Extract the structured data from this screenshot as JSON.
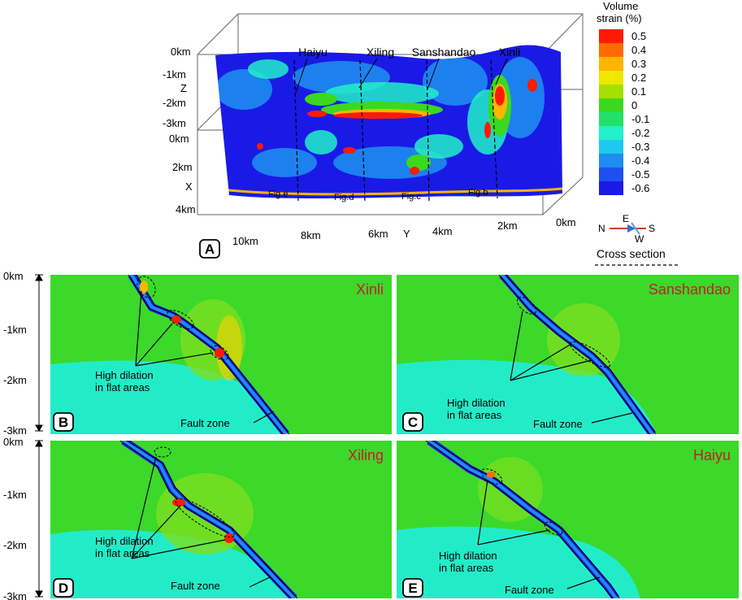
{
  "panel_a": {
    "letter": "A",
    "z_axis": {
      "label": "Z",
      "ticks": [
        "0km",
        "-1km",
        "-2km",
        "-3km"
      ]
    },
    "x_axis": {
      "label": "X",
      "ticks": [
        "0km",
        "2km",
        "4km"
      ]
    },
    "y_axis": {
      "label": "Y",
      "ticks": [
        "10km",
        "8km",
        "6km",
        "4km",
        "2km",
        "0km"
      ]
    },
    "locations": [
      "Haiyu",
      "Xiling",
      "Sanshandao",
      "Xinli"
    ],
    "fig_labels": [
      "Fig.e",
      "Fig.d",
      "Fig.c",
      "Fig.b"
    ],
    "compass": {
      "n": "N",
      "e": "E",
      "s": "S",
      "w": "W"
    }
  },
  "colorbar": {
    "title_line1": "Volume",
    "title_line2": "strain (%)",
    "ticks": [
      "0.5",
      "0.4",
      "0.3",
      "0.2",
      "0.1",
      "0",
      "-0.1",
      "-0.2",
      "-0.3",
      "-0.4",
      "-0.5",
      "-0.6"
    ],
    "colors": [
      "#ff1a00",
      "#ff6a00",
      "#ffb400",
      "#f0e600",
      "#a6e000",
      "#3cd820",
      "#22e068",
      "#22f0c8",
      "#1ec8f0",
      "#1e8cf0",
      "#1e50f0",
      "#1a1ae6"
    ]
  },
  "cross_section_legend": "Cross section",
  "section_depth_ticks": [
    "0km",
    "-1km",
    "-2km",
    "-3km"
  ],
  "panels": [
    {
      "letter": "B",
      "title": "Xinli",
      "annotation_line1": "High dilation",
      "annotation_line2": "in flat areas",
      "fault_label": "Fault zone"
    },
    {
      "letter": "C",
      "title": "Sanshandao",
      "annotation_line1": "High dilation",
      "annotation_line2": "in flat areas",
      "fault_label": "Fault zone"
    },
    {
      "letter": "D",
      "title": "Xiling",
      "annotation_line1": "High dilation",
      "annotation_line2": "in flat areas",
      "fault_label": "Fault zone"
    },
    {
      "letter": "E",
      "title": "Haiyu",
      "annotation_line1": "High dilation",
      "annotation_line2": "in flat areas",
      "fault_label": "Fault zone"
    }
  ],
  "colors": {
    "title_red": "#c0202a",
    "background_green": "#3cd82a",
    "cyan_zone": "#22ecc8"
  }
}
